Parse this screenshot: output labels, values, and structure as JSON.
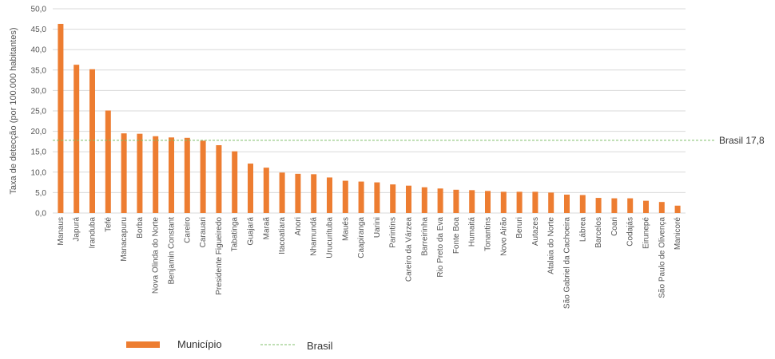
{
  "chart_data": {
    "type": "bar",
    "ylabel": "Taxa de detecção (por 100.000 habitantes)",
    "ylim": [
      0,
      50
    ],
    "ytick_step": 5,
    "ytick_labels": [
      "0,0",
      "5,0",
      "10,0",
      "15,0",
      "20,0",
      "25,0",
      "30,0",
      "35,0",
      "40,0",
      "45,0",
      "50,0"
    ],
    "grid": true,
    "categories": [
      "Manaus",
      "Japurá",
      "Iranduba",
      "Tefé",
      "Manacapuru",
      "Borba",
      "Nova Olinda do Norte",
      "Benjamin Constant",
      "Careiro",
      "Carauari",
      "Presidente Figueiredo",
      "Tabatinga",
      "Guajará",
      "Maraã",
      "Itacoatiara",
      "Anori",
      "Nhamundá",
      "Urucurituba",
      "Maués",
      "Caapiranga",
      "Uarini",
      "Parintins",
      "Careiro da Várzea",
      "Barreirinha",
      "Rio Preto da Eva",
      "Fonte Boa",
      "Humaitá",
      "Tonantins",
      "Novo Airão",
      "Beruri",
      "Autazes",
      "Atalaia do Norte",
      "São Gabriel da Cachoeira",
      "Lábrea",
      "Barcelos",
      "Coari",
      "Codajás",
      "Eirunepé",
      "São Paulo de Olivença",
      "Manicoré"
    ],
    "series": [
      {
        "name": "Município",
        "color": "#ED7D31",
        "values": [
          46.3,
          36.3,
          35.2,
          25.1,
          19.5,
          19.4,
          18.8,
          18.5,
          18.4,
          17.7,
          16.6,
          15.1,
          12.1,
          11.1,
          9.9,
          9.6,
          9.5,
          8.7,
          7.9,
          7.7,
          7.5,
          7.0,
          6.7,
          6.3,
          6.0,
          5.7,
          5.6,
          5.4,
          5.2,
          5.2,
          5.2,
          5.0,
          4.5,
          4.4,
          3.7,
          3.6,
          3.6,
          3.0,
          2.7,
          1.8
        ]
      }
    ],
    "reference_line": {
      "name": "Brasil",
      "value": 17.8,
      "label": "Brasil 17,8",
      "color": "#7FBF6A",
      "style": "dashed"
    },
    "legend": {
      "position": "bottom-left",
      "items": [
        {
          "label": "Município",
          "kind": "bar",
          "color": "#ED7D31"
        },
        {
          "label": "Brasil",
          "kind": "dashed-line",
          "color": "#7FBF6A"
        }
      ]
    }
  }
}
